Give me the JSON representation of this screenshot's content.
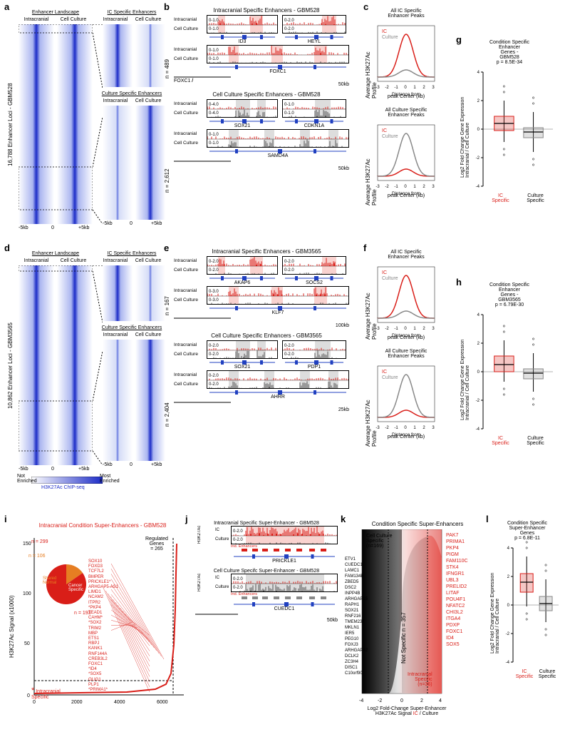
{
  "panels": {
    "a": {
      "label": "a"
    },
    "b": {
      "label": "b"
    },
    "c": {
      "label": "c"
    },
    "d": {
      "label": "d"
    },
    "e": {
      "label": "e"
    },
    "f": {
      "label": "f"
    },
    "g": {
      "label": "g"
    },
    "h": {
      "label": "h"
    },
    "i": {
      "label": "i"
    },
    "j": {
      "label": "j"
    },
    "k": {
      "label": "k"
    },
    "l": {
      "label": "l"
    }
  },
  "heatmap": {
    "enrich_low": "Not\nEnriched",
    "enrich_high": "Most\nEnriched",
    "chipseq_label": "H3K27Ac ChIP-seq",
    "xaxis_ticks": [
      "-5kb",
      "0",
      "+5kb"
    ],
    "gradient_start": "#ffffff",
    "gradient_end": "#1c2cc7"
  },
  "a528": {
    "ylabel": "16,788 Enhancer Loci - GBM528",
    "enh_landscape": "Enhancer Landscape",
    "ic_enh": "IC Specific Enhancers",
    "culture_enh": "Culture Specific Enhancers",
    "intracranial": "Intracranial",
    "cellculture": "Cell Culture",
    "n_ic": "n = 489",
    "n_cult": "n = 2,612"
  },
  "a3565": {
    "ylabel": "10,862 Enhancer Loci - GBM3565",
    "n_ic": "n = 167",
    "n_cult": "n = 2,404"
  },
  "tracks": {
    "b_title": "Intracranial Specific Enhancers - GBM528",
    "b_cc_title": "Cell Culture Specific Enhancers - GBM528",
    "e_title": "Intracranial Specific Enhancers - GBM3565",
    "e_cc_title": "Cell Culture Specific Enhancers - GBM3565",
    "ic": "Intracranial",
    "cc": "Cell Culture",
    "scale_10": "0-1.0",
    "scale_20": "0-2.0",
    "scale_30": "0-3.0",
    "scale_40": "0-4.0",
    "b_genes": {
      "r1a": "ID3",
      "r1b": "HEYL",
      "r2": "FOXC1",
      "r3a": "SOX21",
      "r3b": "CDKN1A",
      "r4": "SAMD4A"
    },
    "e_genes": {
      "r1a": "AKAP6",
      "r1b": "SOCS2",
      "r2": "KLF7",
      "r3a": "SOX21",
      "r3b": "PDP1",
      "r4": "AHRR"
    },
    "scalebar50": "50kb",
    "scalebar100": "100kb",
    "scalebar25": "25kb"
  },
  "profiles": {
    "c_ic_title": "All IC Specific\nEnhancer Peaks",
    "c_cult_title": "All Culture Specific\nEnhancer Peaks",
    "ylabel": "Average H3K27Ac Profile",
    "xlabel": "Distance from\npeak Center (kb)",
    "xticks": [
      "-3",
      "-2",
      "-1",
      "0",
      "1",
      "2",
      "3"
    ],
    "legend_ic": "IC",
    "legend_cult": "Culture",
    "color_ic": "#d91e18",
    "color_cult": "#888888",
    "ic_peak_y": 6,
    "cult_flat_y": 1.2,
    "cult_peak_y": 6,
    "ic_flat_y": 1.4
  },
  "boxplots": {
    "g_title": "Condition Specific\nEnhancer\nGenes -\nGBM528",
    "h_title": "Condition Specific\nEnhancer\nGenes -\nGBM3565",
    "l_title": "Condition Specific\nSuper-Enhancer\nGenes",
    "ylabel": "Log2 Fold Change Gene Expression\nIntracranial / Cell Culture",
    "x_ic": "IC\nSpecific",
    "x_cult": "Culture\nSpecific",
    "g_p": "p = 8.5E-34",
    "h_p": "p = 6.79E-30",
    "l_p": "p = 6.8E-11",
    "yticks": [
      "-4",
      "-2",
      "0",
      "2",
      "4"
    ],
    "color_ic": "#d91e18",
    "color_cult": "#888888",
    "g_ic": {
      "q1": -0.1,
      "med": 0.4,
      "q3": 0.9,
      "wl": -0.9,
      "wh": 2.0
    },
    "g_cult": {
      "q1": -0.6,
      "med": -0.2,
      "q3": 0.1,
      "wl": -1.6,
      "wh": 1.2
    },
    "h_ic": {
      "q1": 0.0,
      "med": 0.5,
      "q3": 1.1,
      "wl": -0.7,
      "wh": 2.2
    },
    "h_cult": {
      "q1": -0.5,
      "med": -0.1,
      "q3": 0.2,
      "wl": -1.4,
      "wh": 1.3
    },
    "l_ic": {
      "q1": 0.9,
      "med": 1.6,
      "q3": 2.2,
      "wl": -0.1,
      "wh": 3.4
    },
    "l_cult": {
      "q1": -0.4,
      "med": 0.1,
      "q3": 0.6,
      "wl": -1.2,
      "wh": 1.8
    }
  },
  "hockey": {
    "title": "Intracranial Condition Super-Enhancers - GBM528",
    "ylabel": "H3K27Ac Signal (x1000)",
    "n_total": "n = 299",
    "n_shared": "n = 106",
    "n_cancer": "n = 193",
    "pie_shared": "Shared\nNormal",
    "pie_cancer": "Cancer\nSpecific",
    "regulated": "Regulated\nGenes\n= 265",
    "star_label": "Intracranial\nSpecific",
    "yticks": [
      "0",
      "50",
      "100",
      "150"
    ],
    "xticks": [
      "0",
      "2000",
      "4000",
      "6000"
    ],
    "color": "#d91e18",
    "pie_orange": "#e67e22",
    "callouts": [
      "SOX10",
      "FOXD3",
      "TCF7L2",
      "BMPER",
      "PRICKLE1*",
      "ARHGAP5-AS1",
      "LIMD1",
      "NCAM2",
      "ITPR2",
      "*PKP4",
      "TEAD1",
      "CAHM*",
      "*SOX2",
      "TRIM2",
      "MBP",
      "ETS1",
      "RBPJ",
      "KANK1",
      "RNF144A",
      "CREB3L2",
      "FOXC1",
      "*ID4",
      "*SOX5",
      "OLIG1",
      "PLP1",
      "*PRIMA1*"
    ]
  },
  "se_tracks": {
    "ic_title": "Intracranial Specific Super-Enhancer - GBM528",
    "cc_title": "Cell Culture Specifc Super-Enhancer - GBM528",
    "ic": "IC",
    "cult": "Culture",
    "ind": "Ind. Enhancers",
    "h3": "H3K27Ac",
    "scale": "0-2.0",
    "gene1": "PRICKLE1",
    "gene2": "CUEDC1",
    "scalebar": "50kb"
  },
  "waterfall": {
    "title": "Condition Specific Super-Enhancers",
    "cc_label": "Cell Culture\nSpecific\n(n=169)",
    "ic_label": "Intracranial\nSpecific\n(n=36)",
    "ns_label": "Not Specific n = 357",
    "xlabel": "Log2 Fold-Change Super-Enhancer\nH3K27Ac Signal IC / Culture",
    "xticks": [
      "-4",
      "-2",
      "0",
      "2",
      "4"
    ],
    "cc_genes": [
      "ETV1",
      "CUEDC1",
      "LAMC1",
      "FAM134B",
      "ZBED5",
      "DSC2",
      "INPP4B",
      "ARHGAP15",
      "RAPH1",
      "SOX21",
      "RNF216",
      "TMEM237",
      "MKLN1",
      "IER5",
      "PEG10",
      "FOXJ3",
      "ARHGAP42",
      "DCLK2",
      "ZC3H4",
      "DISC1",
      "C10orf90"
    ],
    "ic_genes": [
      "PAK7",
      "PRIMA1",
      "PKP4",
      "PIGM",
      "FAM110C",
      "STK4",
      "IFNGR1",
      "UBL3",
      "PRELID2",
      "LITAF",
      "POU4F1",
      "NFATC2",
      "CHI3L2",
      "ITGA4",
      "PDXP",
      "FOXC1",
      "ID4",
      "SOX5"
    ]
  }
}
